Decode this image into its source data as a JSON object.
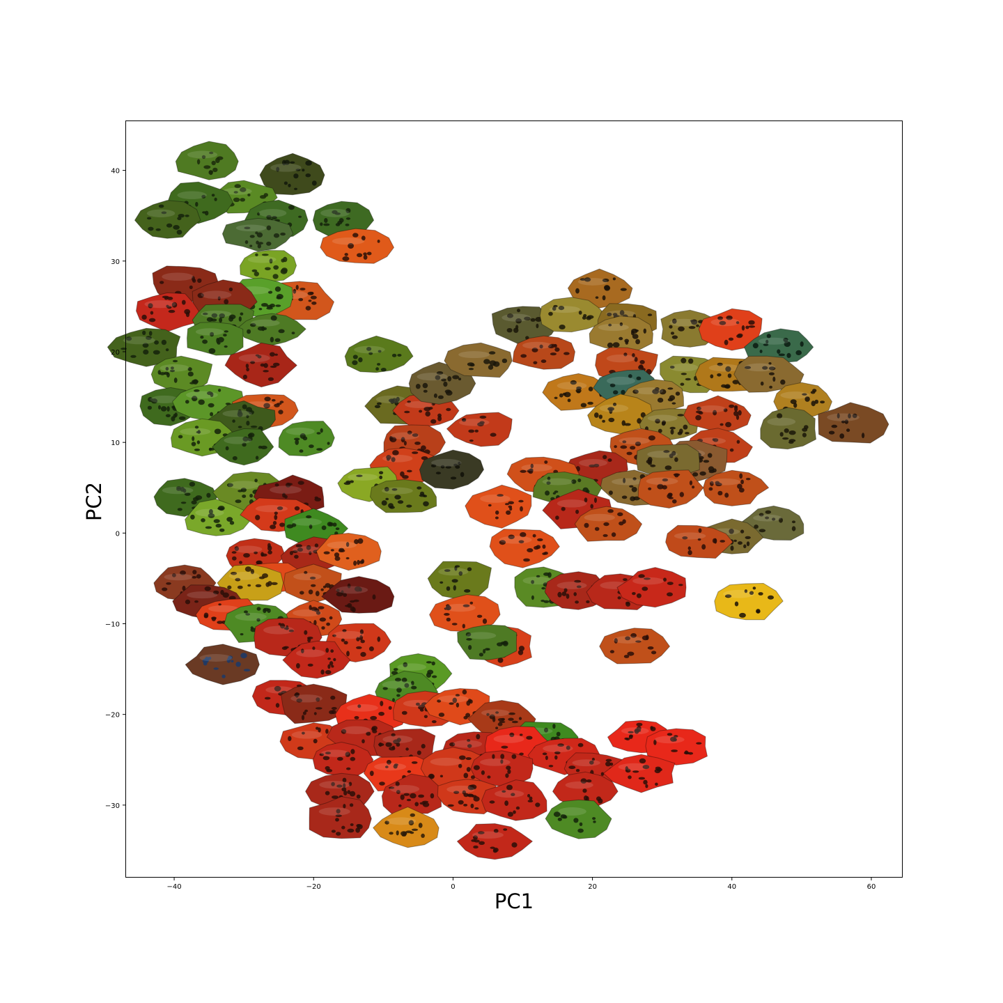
{
  "chart_data": {
    "type": "scatter",
    "title": "",
    "xlabel": "PC1",
    "ylabel": "PC2",
    "xlim": [
      -47,
      64.5
    ],
    "ylim": [
      -38,
      45.5
    ],
    "xticks": [
      -40,
      -20,
      0,
      20,
      40,
      60
    ],
    "yticks": [
      -30,
      -20,
      -10,
      0,
      10,
      20,
      30,
      40
    ],
    "xtick_labels": [
      "−40",
      "−20",
      "0",
      "20",
      "40",
      "60"
    ],
    "ytick_labels": [
      "−30",
      "−20",
      "−10",
      "0",
      "10",
      "20",
      "30",
      "40"
    ],
    "grid": false,
    "legend": "none",
    "marker": "frog-skin-image",
    "points": [
      {
        "x": -35,
        "y": 41,
        "color": "#4f7a22",
        "spots": "#1b2a0a"
      },
      {
        "x": -23,
        "y": 39.5,
        "color": "#3f4a1c",
        "spots": "#12170a"
      },
      {
        "x": -30,
        "y": 37,
        "color": "#5a8a24",
        "spots": "#1b2a0a"
      },
      {
        "x": -36.5,
        "y": 36.5,
        "color": "#3f6a1e",
        "spots": "#14220a"
      },
      {
        "x": -41,
        "y": 34.5,
        "color": "#44621c",
        "spots": "#14220a"
      },
      {
        "x": -25,
        "y": 34.5,
        "color": "#3e6a22",
        "spots": "#14220a"
      },
      {
        "x": -16,
        "y": 34.5,
        "color": "#3e6a22",
        "spots": "#14220a"
      },
      {
        "x": -28,
        "y": 33,
        "color": "#4c6b34",
        "spots": "#1a2410"
      },
      {
        "x": -14,
        "y": 31.5,
        "color": "#e05a1a",
        "spots": "#2a1208"
      },
      {
        "x": -26.5,
        "y": 29.5,
        "color": "#7aa424",
        "spots": "#1b2a0a"
      },
      {
        "x": -38.5,
        "y": 27.5,
        "color": "#8a2a18",
        "spots": "#2a0e08"
      },
      {
        "x": -22,
        "y": 25.5,
        "color": "#d2561c",
        "spots": "#2a1208"
      },
      {
        "x": -27.5,
        "y": 26,
        "color": "#59a02a",
        "spots": "#14220a"
      },
      {
        "x": -33,
        "y": 25.5,
        "color": "#8a2a18",
        "spots": "#2a0e08"
      },
      {
        "x": -41,
        "y": 24.5,
        "color": "#c4281c",
        "spots": "#2a0e08"
      },
      {
        "x": -33,
        "y": 23.5,
        "color": "#4e7a24",
        "spots": "#14220a"
      },
      {
        "x": -26,
        "y": 22.5,
        "color": "#4e7a24",
        "spots": "#14220a"
      },
      {
        "x": -44,
        "y": 20.5,
        "color": "#44621c",
        "spots": "#14220a"
      },
      {
        "x": -34,
        "y": 21.5,
        "color": "#4e8024",
        "spots": "#14220a"
      },
      {
        "x": -27.5,
        "y": 18.5,
        "color": "#a82618",
        "spots": "#2a0e08"
      },
      {
        "x": -11,
        "y": 19.5,
        "color": "#5a7a1c",
        "spots": "#14220a"
      },
      {
        "x": -39,
        "y": 17.5,
        "color": "#5c8a24",
        "spots": "#14220a"
      },
      {
        "x": -40.5,
        "y": 14,
        "color": "#3f6a1e",
        "spots": "#14220a"
      },
      {
        "x": -35,
        "y": 14.5,
        "color": "#5c9628",
        "spots": "#14220a"
      },
      {
        "x": -27,
        "y": 13.5,
        "color": "#d2561c",
        "spots": "#2a1208"
      },
      {
        "x": -30,
        "y": 12.5,
        "color": "#3f5a1c",
        "spots": "#14220a"
      },
      {
        "x": -36,
        "y": 10.5,
        "color": "#6a9a24",
        "spots": "#14220a"
      },
      {
        "x": -30,
        "y": 9.5,
        "color": "#3f6a1e",
        "spots": "#14220a"
      },
      {
        "x": -21,
        "y": 10.5,
        "color": "#4e8a24",
        "spots": "#14220a"
      },
      {
        "x": -38.5,
        "y": 4,
        "color": "#3f6a1e",
        "spots": "#14220a"
      },
      {
        "x": -29,
        "y": 4.5,
        "color": "#6a8a24",
        "spots": "#14220a"
      },
      {
        "x": -23,
        "y": 4,
        "color": "#7a1c14",
        "spots": "#2a0e08"
      },
      {
        "x": -34,
        "y": 1.5,
        "color": "#7aa82a",
        "spots": "#14220a"
      },
      {
        "x": -25,
        "y": 2,
        "color": "#d43a1a",
        "spots": "#2a0e08"
      },
      {
        "x": -20,
        "y": 0.5,
        "color": "#3f8a20",
        "spots": "#14220a"
      },
      {
        "x": -28.5,
        "y": -2.5,
        "color": "#c23018",
        "spots": "#2a0e08"
      },
      {
        "x": -20,
        "y": -2.5,
        "color": "#a82818",
        "spots": "#2a0e08"
      },
      {
        "x": -15,
        "y": -2,
        "color": "#e0601e",
        "spots": "#2a1208"
      },
      {
        "x": -26,
        "y": -5,
        "color": "#e04a1a",
        "spots": "#2a0e08"
      },
      {
        "x": -29,
        "y": -5.5,
        "color": "#c8a018",
        "spots": "#2a1a08"
      },
      {
        "x": -20,
        "y": -5.5,
        "color": "#c2501a",
        "spots": "#2a1208"
      },
      {
        "x": -38.5,
        "y": -5.5,
        "color": "#8a3a20",
        "spots": "#2a0e08"
      },
      {
        "x": -35,
        "y": -7.5,
        "color": "#7a2418",
        "spots": "#2a0e08"
      },
      {
        "x": -13.5,
        "y": -7,
        "color": "#6a1a14",
        "spots": "#2a0e08"
      },
      {
        "x": -32,
        "y": -9,
        "color": "#e0401a",
        "spots": "#2a0e08"
      },
      {
        "x": -20,
        "y": -9.5,
        "color": "#d04a1a",
        "spots": "#2a0e08"
      },
      {
        "x": -28,
        "y": -10,
        "color": "#4e8a24",
        "spots": "#14220a"
      },
      {
        "x": -24,
        "y": -11.5,
        "color": "#b8281a",
        "spots": "#2a0e08"
      },
      {
        "x": -14,
        "y": -12,
        "color": "#d0381a",
        "spots": "#2a0e08"
      },
      {
        "x": -19.5,
        "y": -14,
        "color": "#c2281a",
        "spots": "#2a0e08"
      },
      {
        "x": -33,
        "y": -14.5,
        "color": "#6a3a24",
        "spots": "#1a3a6a"
      },
      {
        "x": -5,
        "y": -15.5,
        "color": "#5a9a24",
        "spots": "#14220a"
      },
      {
        "x": -7,
        "y": -17.5,
        "color": "#4e8a24",
        "spots": "#14220a"
      },
      {
        "x": -24,
        "y": -18,
        "color": "#c2281a",
        "spots": "#2a0e08"
      },
      {
        "x": -20,
        "y": -19,
        "color": "#8a2a18",
        "spots": "#2a0e08"
      },
      {
        "x": -12,
        "y": -20,
        "color": "#e8301a",
        "spots": "#2a0e08"
      },
      {
        "x": -4,
        "y": -19.5,
        "color": "#d0381a",
        "spots": "#2a0e08"
      },
      {
        "x": 1,
        "y": -19,
        "color": "#e04a1a",
        "spots": "#2a1208"
      },
      {
        "x": 7,
        "y": -20.5,
        "color": "#a83a18",
        "spots": "#2a1208"
      },
      {
        "x": 13,
        "y": -22.5,
        "color": "#3f8a20",
        "spots": "#14220a"
      },
      {
        "x": -20,
        "y": -23,
        "color": "#d03a1a",
        "spots": "#2a0e08"
      },
      {
        "x": -13,
        "y": -22.5,
        "color": "#b8281a",
        "spots": "#2a0e08"
      },
      {
        "x": -7,
        "y": -23.5,
        "color": "#a8281a",
        "spots": "#2a0e08"
      },
      {
        "x": 3,
        "y": -24,
        "color": "#b8281a",
        "spots": "#2a0e08"
      },
      {
        "x": 9,
        "y": -23.5,
        "color": "#e8281a",
        "spots": "#2a0e08"
      },
      {
        "x": 16,
        "y": -24.5,
        "color": "#d0281a",
        "spots": "#2a0e08"
      },
      {
        "x": 27,
        "y": -22.5,
        "color": "#e8281a",
        "spots": "#2a0e08"
      },
      {
        "x": 32,
        "y": -23.5,
        "color": "#e8281a",
        "spots": "#2a0e08"
      },
      {
        "x": -16,
        "y": -25,
        "color": "#c2281a",
        "spots": "#2a0e08"
      },
      {
        "x": -8,
        "y": -26.5,
        "color": "#e8381a",
        "spots": "#2a0e08"
      },
      {
        "x": 0,
        "y": -26,
        "color": "#d0381a",
        "spots": "#2a0e08"
      },
      {
        "x": 7,
        "y": -26,
        "color": "#c2281a",
        "spots": "#2a0e08"
      },
      {
        "x": 20,
        "y": -26,
        "color": "#c2281a",
        "spots": "#2a0e08"
      },
      {
        "x": 27,
        "y": -26.5,
        "color": "#e0281a",
        "spots": "#2a0e08"
      },
      {
        "x": -16,
        "y": -28.5,
        "color": "#a8281a",
        "spots": "#2a0e08"
      },
      {
        "x": -6,
        "y": -29,
        "color": "#b8281a",
        "spots": "#2a0e08"
      },
      {
        "x": 2,
        "y": -29,
        "color": "#d0381a",
        "spots": "#2a0e08"
      },
      {
        "x": 9,
        "y": -29.5,
        "color": "#c2281a",
        "spots": "#2a0e08"
      },
      {
        "x": 19,
        "y": -28.5,
        "color": "#c2281a",
        "spots": "#2a0e08"
      },
      {
        "x": -16,
        "y": -31.5,
        "color": "#a8281a",
        "spots": "#2a0e08"
      },
      {
        "x": -6.5,
        "y": -32.5,
        "color": "#d88a18",
        "spots": "#2a1a08"
      },
      {
        "x": 18,
        "y": -31.5,
        "color": "#4e8a24",
        "spots": "#14220a"
      },
      {
        "x": 6,
        "y": -34,
        "color": "#c2281a",
        "spots": "#2a0e08"
      },
      {
        "x": -8,
        "y": 14,
        "color": "#6a6a20",
        "spots": "#14160a"
      },
      {
        "x": -4,
        "y": 13.5,
        "color": "#c23a1a",
        "spots": "#2a0e08"
      },
      {
        "x": -2,
        "y": 16.5,
        "color": "#6a5a30",
        "spots": "#1a160a"
      },
      {
        "x": 4,
        "y": 19,
        "color": "#8a6a30",
        "spots": "#1a160a"
      },
      {
        "x": 4,
        "y": 11.5,
        "color": "#c23a1a",
        "spots": "#2a0e08"
      },
      {
        "x": -6,
        "y": 10,
        "color": "#b8401a",
        "spots": "#2a0e08"
      },
      {
        "x": -7,
        "y": 7.5,
        "color": "#d0401a",
        "spots": "#2a0e08"
      },
      {
        "x": 0,
        "y": 7,
        "color": "#3a3a24",
        "spots": "#101008"
      },
      {
        "x": -12,
        "y": 5.5,
        "color": "#8aa824",
        "spots": "#14160a"
      },
      {
        "x": -7,
        "y": 4,
        "color": "#6a7a1c",
        "spots": "#14160a"
      },
      {
        "x": 7,
        "y": 3,
        "color": "#e0501a",
        "spots": "#2a0e08"
      },
      {
        "x": 10,
        "y": -1.5,
        "color": "#e0501a",
        "spots": "#2a0e08"
      },
      {
        "x": 1,
        "y": -5,
        "color": "#6a7a1c",
        "spots": "#14160a"
      },
      {
        "x": 2,
        "y": -9,
        "color": "#e0501a",
        "spots": "#2a0e08"
      },
      {
        "x": 7,
        "y": -12.5,
        "color": "#d8401a",
        "spots": "#2a0e08"
      },
      {
        "x": 5,
        "y": -12,
        "color": "#4e7a24",
        "spots": "#14220a"
      },
      {
        "x": 13,
        "y": -6,
        "color": "#5a8a24",
        "spots": "#14220a"
      },
      {
        "x": 18,
        "y": -6.5,
        "color": "#a8281a",
        "spots": "#2a0e08"
      },
      {
        "x": 24,
        "y": -6.5,
        "color": "#b8281a",
        "spots": "#2a0e08"
      },
      {
        "x": 29,
        "y": -6,
        "color": "#c8281a",
        "spots": "#2a0e08"
      },
      {
        "x": 42,
        "y": -7.5,
        "color": "#e8b818",
        "spots": "#1a1208"
      },
      {
        "x": 26,
        "y": -12.5,
        "color": "#c0501a",
        "spots": "#2a0e08"
      },
      {
        "x": 21,
        "y": 27,
        "color": "#a86a20",
        "spots": "#1a1208"
      },
      {
        "x": 10,
        "y": 23,
        "color": "#5a5a30",
        "spots": "#1a1608"
      },
      {
        "x": 17,
        "y": 24,
        "color": "#9a8a30",
        "spots": "#1a1608"
      },
      {
        "x": 25,
        "y": 23.5,
        "color": "#8a6a20",
        "spots": "#1a1208"
      },
      {
        "x": 24,
        "y": 22,
        "color": "#9a7a30",
        "spots": "#1a1208"
      },
      {
        "x": 34,
        "y": 22.5,
        "color": "#8a7a30",
        "spots": "#1a1208"
      },
      {
        "x": 40,
        "y": 22.5,
        "color": "#e0401a",
        "spots": "#2a0e08"
      },
      {
        "x": 13,
        "y": 20,
        "color": "#b8481a",
        "spots": "#2a0e08"
      },
      {
        "x": 47,
        "y": 20.5,
        "color": "#3a6a4a",
        "spots": "#0a1a10"
      },
      {
        "x": 25,
        "y": 18.5,
        "color": "#c0481a",
        "spots": "#2a0e08"
      },
      {
        "x": 34,
        "y": 17.5,
        "color": "#8a8a30",
        "spots": "#1a1608"
      },
      {
        "x": 40,
        "y": 17.5,
        "color": "#b0781a",
        "spots": "#1a1208"
      },
      {
        "x": 45,
        "y": 17.5,
        "color": "#8a6a30",
        "spots": "#1a1208"
      },
      {
        "x": 18,
        "y": 15.5,
        "color": "#c0781a",
        "spots": "#1a1208"
      },
      {
        "x": 25,
        "y": 16,
        "color": "#3a6a5a",
        "spots": "#0a1a14"
      },
      {
        "x": 29,
        "y": 15,
        "color": "#9a7a30",
        "spots": "#1a1208"
      },
      {
        "x": 50,
        "y": 14.5,
        "color": "#b08020",
        "spots": "#1a1208"
      },
      {
        "x": 24,
        "y": 13,
        "color": "#b8841a",
        "spots": "#1a1208"
      },
      {
        "x": 31,
        "y": 12,
        "color": "#8a7a30",
        "spots": "#1a1208"
      },
      {
        "x": 38,
        "y": 13,
        "color": "#c0401a",
        "spots": "#2a0e08"
      },
      {
        "x": 48,
        "y": 11.5,
        "color": "#6a6a30",
        "spots": "#1a1608"
      },
      {
        "x": 57,
        "y": 12,
        "color": "#7a4a24",
        "spots": "#1a0e08"
      },
      {
        "x": 27,
        "y": 9.5,
        "color": "#c0501a",
        "spots": "#2a0e08"
      },
      {
        "x": 38,
        "y": 9.5,
        "color": "#c0401a",
        "spots": "#2a0e08"
      },
      {
        "x": 35,
        "y": 8,
        "color": "#8a5a30",
        "spots": "#1a1208"
      },
      {
        "x": 31,
        "y": 8,
        "color": "#7a6a30",
        "spots": "#1a1208"
      },
      {
        "x": 21,
        "y": 7,
        "color": "#a8281a",
        "spots": "#2a0e08"
      },
      {
        "x": 13,
        "y": 6.5,
        "color": "#d0501a",
        "spots": "#2a0e08"
      },
      {
        "x": 26,
        "y": 5,
        "color": "#8a6a30",
        "spots": "#1a1208"
      },
      {
        "x": 31,
        "y": 5,
        "color": "#c0501a",
        "spots": "#2a0e08"
      },
      {
        "x": 40,
        "y": 5,
        "color": "#c0501a",
        "spots": "#2a0e08"
      },
      {
        "x": 16,
        "y": 5,
        "color": "#5a7a24",
        "spots": "#14220a"
      },
      {
        "x": 18,
        "y": 2.5,
        "color": "#b8281a",
        "spots": "#2a0e08"
      },
      {
        "x": 22,
        "y": 1,
        "color": "#c0501a",
        "spots": "#2a0e08"
      },
      {
        "x": 46,
        "y": 1,
        "color": "#6a6a3a",
        "spots": "#1a1608"
      },
      {
        "x": 40,
        "y": -0.5,
        "color": "#7a6a30",
        "spots": "#1a1208"
      },
      {
        "x": 35,
        "y": -1,
        "color": "#c04a1a",
        "spots": "#2a0e08"
      }
    ]
  }
}
